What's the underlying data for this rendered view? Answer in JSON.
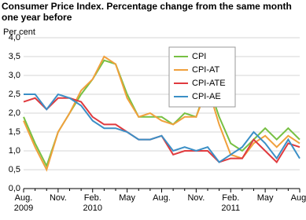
{
  "chart_data": {
    "type": "line",
    "title": "Consumer Price Index. Percentage change from the same month one year before",
    "y_label": "Per cent",
    "categories": [
      "Aug. 2009",
      null,
      null,
      "Nov.",
      null,
      null,
      "Feb. 2010",
      null,
      null,
      "May",
      null,
      null,
      "Aug.",
      null,
      null,
      "Nov.",
      null,
      null,
      "Feb. 2011",
      null,
      null,
      "May",
      null,
      null,
      "Aug."
    ],
    "series": [
      {
        "name": "CPI",
        "color": "#77c043",
        "values": [
          1.9,
          1.2,
          0.6,
          1.5,
          2.0,
          2.5,
          2.9,
          3.4,
          3.3,
          2.5,
          1.9,
          1.9,
          1.9,
          1.7,
          2.0,
          1.9,
          2.8,
          1.9,
          1.2,
          1.0,
          1.3,
          1.6,
          1.3,
          1.6,
          1.3
        ]
      },
      {
        "name": "CPI-AT",
        "color": "#f0a03c",
        "values": [
          1.8,
          1.1,
          0.5,
          1.5,
          2.0,
          2.6,
          2.9,
          3.5,
          3.3,
          2.4,
          1.9,
          2.0,
          1.8,
          1.7,
          1.9,
          1.9,
          2.7,
          1.7,
          0.9,
          0.8,
          1.2,
          1.4,
          1.1,
          1.4,
          1.2
        ]
      },
      {
        "name": "CPI-ATE",
        "color": "#e03a3e",
        "values": [
          2.3,
          2.4,
          2.1,
          2.4,
          2.4,
          2.3,
          1.9,
          1.7,
          1.7,
          1.5,
          1.3,
          1.3,
          1.4,
          0.9,
          1.0,
          1.0,
          1.0,
          0.7,
          0.8,
          0.8,
          1.3,
          1.0,
          0.7,
          1.2,
          1.1
        ]
      },
      {
        "name": "CPI-AE",
        "color": "#3b8fc6",
        "values": [
          2.5,
          2.5,
          2.1,
          2.5,
          2.4,
          2.2,
          1.8,
          1.6,
          1.6,
          1.5,
          1.3,
          1.3,
          1.4,
          1.0,
          1.1,
          1.0,
          1.1,
          0.7,
          0.9,
          1.1,
          1.5,
          1.2,
          0.8,
          1.3,
          0.8
        ]
      }
    ],
    "ylim": [
      0,
      4
    ],
    "yticks": [
      {
        "value": 0,
        "label": "0,0"
      },
      {
        "value": 0.5,
        "label": "0,5"
      },
      {
        "value": 1,
        "label": "1,0"
      },
      {
        "value": 1.5,
        "label": "1,5"
      },
      {
        "value": 2,
        "label": "2,0"
      },
      {
        "value": 2.5,
        "label": "2,5"
      },
      {
        "value": 3,
        "label": "3,0"
      },
      {
        "value": 3.5,
        "label": "3,5"
      },
      {
        "value": 4,
        "label": "4,0"
      }
    ],
    "grid": true,
    "legend": "upper right"
  }
}
